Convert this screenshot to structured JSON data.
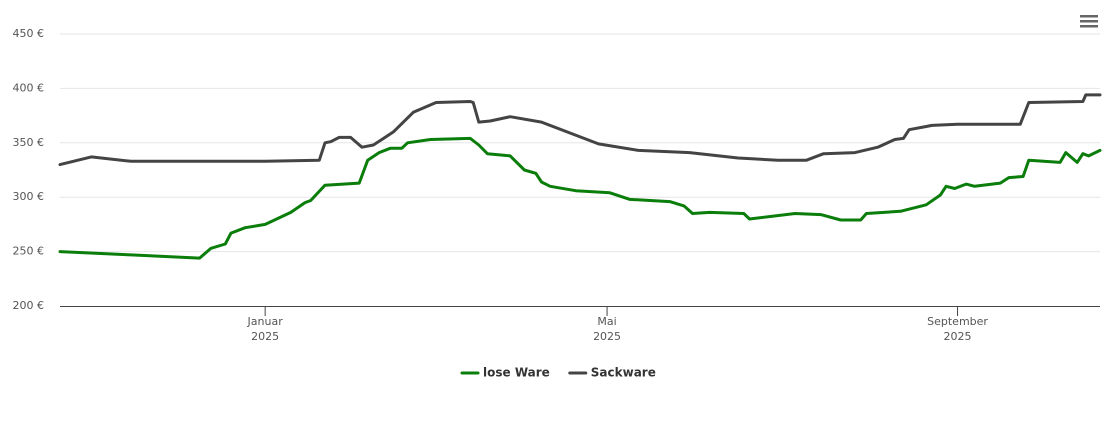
{
  "chart_data": {
    "type": "line",
    "xlim": [
      "2024-10-21",
      "2025-10-21"
    ],
    "xticks": [
      {
        "value": "2025-01-01",
        "label": [
          "Januar",
          "2025"
        ]
      },
      {
        "value": "2025-05-01",
        "label": [
          "Mai",
          "2025"
        ]
      },
      {
        "value": "2025-09-01",
        "label": [
          "September",
          "2025"
        ]
      }
    ],
    "ylim": [
      200,
      450
    ],
    "yticks": [
      {
        "value": 200,
        "label": "200 €"
      },
      {
        "value": 250,
        "label": "250 €"
      },
      {
        "value": 300,
        "label": "300 €"
      },
      {
        "value": 350,
        "label": "350 €"
      },
      {
        "value": 400,
        "label": "400 €"
      },
      {
        "value": 450,
        "label": "450 €"
      }
    ],
    "grid": true,
    "legend": "bottom",
    "series": [
      {
        "name": "lose Ware",
        "color": "#0a7d0a",
        "x": [
          "2024-10-21",
          "2024-11-15",
          "2024-12-09",
          "2024-12-13",
          "2024-12-18",
          "2024-12-20",
          "2024-12-25",
          "2025-01-01",
          "2025-01-10",
          "2025-01-15",
          "2025-01-17",
          "2025-01-22",
          "2025-02-03",
          "2025-02-06",
          "2025-02-10",
          "2025-02-14",
          "2025-02-18",
          "2025-02-20",
          "2025-02-28",
          "2025-03-14",
          "2025-03-17",
          "2025-03-20",
          "2025-03-28",
          "2025-04-02",
          "2025-04-06",
          "2025-04-08",
          "2025-04-11",
          "2025-04-20",
          "2025-05-02",
          "2025-05-09",
          "2025-05-23",
          "2025-05-28",
          "2025-05-31",
          "2025-06-06",
          "2025-06-18",
          "2025-06-20",
          "2025-07-06",
          "2025-07-15",
          "2025-07-22",
          "2025-07-29",
          "2025-07-31",
          "2025-08-12",
          "2025-08-21",
          "2025-08-26",
          "2025-08-28",
          "2025-08-31",
          "2025-09-04",
          "2025-09-07",
          "2025-09-16",
          "2025-09-19",
          "2025-09-24",
          "2025-09-26",
          "2025-10-07",
          "2025-10-09",
          "2025-10-13",
          "2025-10-15",
          "2025-10-17",
          "2025-10-21"
        ],
        "values": [
          250,
          247,
          244,
          253,
          257,
          267,
          272,
          275,
          286,
          295,
          297,
          311,
          313,
          334,
          341,
          345,
          345,
          350,
          353,
          354,
          348,
          340,
          338,
          325,
          322,
          314,
          310,
          306,
          304,
          298,
          296,
          292,
          285,
          286,
          285,
          280,
          285,
          284,
          279,
          279,
          285,
          287,
          293,
          302,
          310,
          308,
          312,
          310,
          313,
          318,
          319,
          334,
          332,
          341,
          332,
          340,
          338,
          343
        ]
      },
      {
        "name": "Sackware",
        "color": "#444444",
        "x": [
          "2024-10-21",
          "2024-11-01",
          "2024-11-15",
          "2024-12-09",
          "2025-01-01",
          "2025-01-20",
          "2025-01-22",
          "2025-01-24",
          "2025-01-27",
          "2025-01-31",
          "2025-02-04",
          "2025-02-08",
          "2025-02-15",
          "2025-02-22",
          "2025-03-02",
          "2025-03-14",
          "2025-03-15",
          "2025-03-17",
          "2025-03-21",
          "2025-03-28",
          "2025-04-08",
          "2025-04-18",
          "2025-04-28",
          "2025-05-12",
          "2025-05-30",
          "2025-06-16",
          "2025-06-30",
          "2025-07-10",
          "2025-07-16",
          "2025-07-27",
          "2025-08-04",
          "2025-08-10",
          "2025-08-13",
          "2025-08-15",
          "2025-08-21",
          "2025-08-23",
          "2025-09-01",
          "2025-09-23",
          "2025-09-26",
          "2025-10-15",
          "2025-10-16",
          "2025-10-21"
        ],
        "values": [
          330,
          337,
          333,
          333,
          333,
          334,
          350,
          351,
          355,
          355,
          346,
          348,
          360,
          378,
          387,
          388,
          387,
          369,
          370,
          374,
          369,
          359,
          349,
          343,
          341,
          336,
          334,
          334,
          340,
          341,
          346,
          353,
          354,
          362,
          365,
          366,
          367,
          367,
          387,
          388,
          394,
          394
        ]
      }
    ]
  }
}
